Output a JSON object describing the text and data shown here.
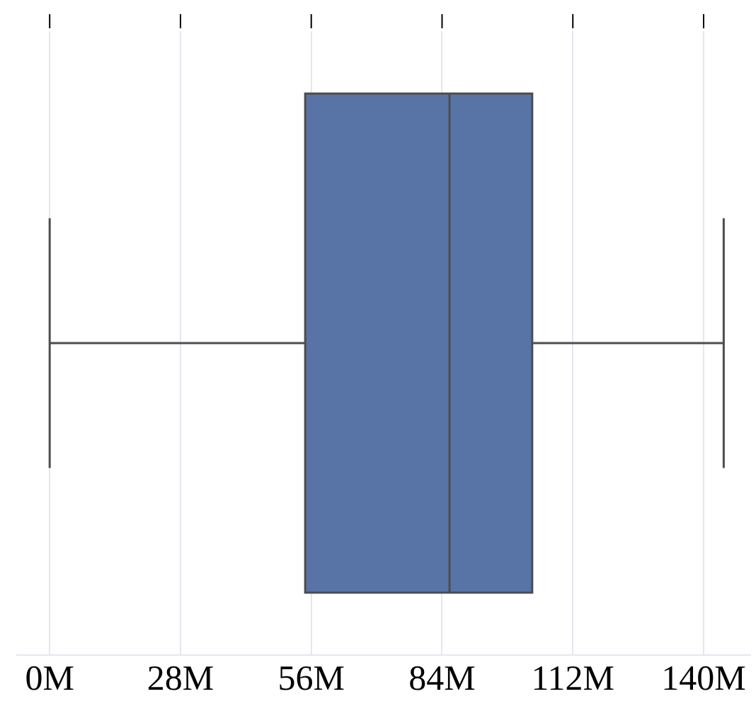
{
  "chart_data": {
    "type": "box",
    "orientation": "horizontal",
    "categories": [
      null
    ],
    "boxes": [
      {
        "low": 0,
        "q1": 54.7,
        "median": 85.6,
        "q3": 103.3,
        "high": 144.3
      }
    ],
    "color": "#5874a6",
    "xlim": [
      -7,
      150
    ],
    "xticks": [
      {
        "value": 0,
        "label": "0M"
      },
      {
        "value": 28,
        "label": "28M"
      },
      {
        "value": 56,
        "label": "56M"
      },
      {
        "value": 84,
        "label": "84M"
      },
      {
        "value": 112,
        "label": "112M"
      },
      {
        "value": 140,
        "label": "140M"
      }
    ],
    "grid": "x",
    "tick_labels": "x"
  }
}
